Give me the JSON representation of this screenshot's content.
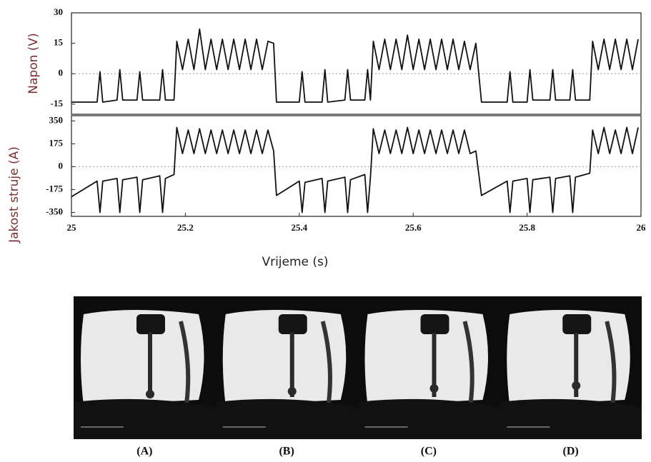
{
  "chart_data": [
    {
      "type": "line",
      "ylabel": "Napon (V)",
      "color": "#111111",
      "xlim": [
        25,
        26
      ],
      "ylim": [
        -20,
        30
      ],
      "yticks": [
        -15,
        0,
        15,
        30
      ],
      "x": [
        25.0,
        25.045,
        25.05,
        25.055,
        25.08,
        25.085,
        25.09,
        25.115,
        25.12,
        25.125,
        25.155,
        25.16,
        25.165,
        25.18,
        25.185,
        25.195,
        25.205,
        25.215,
        25.225,
        25.235,
        25.245,
        25.255,
        25.265,
        25.275,
        25.285,
        25.295,
        25.305,
        25.315,
        25.325,
        25.335,
        25.345,
        25.355,
        25.36,
        25.4,
        25.405,
        25.41,
        25.44,
        25.445,
        25.45,
        25.48,
        25.485,
        25.49,
        25.515,
        25.52,
        25.525,
        25.53,
        25.54,
        25.55,
        25.56,
        25.57,
        25.58,
        25.59,
        25.6,
        25.61,
        25.62,
        25.63,
        25.64,
        25.65,
        25.66,
        25.67,
        25.68,
        25.69,
        25.7,
        25.71,
        25.72,
        25.765,
        25.77,
        25.775,
        25.8,
        25.805,
        25.81,
        25.84,
        25.845,
        25.85,
        25.875,
        25.88,
        25.885,
        25.91,
        25.915,
        25.925,
        25.935,
        25.945,
        25.955,
        25.965,
        25.975,
        25.985,
        25.995
      ],
      "values": [
        -14,
        -14,
        1,
        -14,
        -13,
        2,
        -13,
        -13,
        1,
        -13,
        -13,
        2,
        -13,
        -13,
        16,
        2,
        17,
        2,
        22,
        2,
        17,
        2,
        17,
        2,
        17,
        2,
        17,
        2,
        17,
        2,
        16,
        15,
        -14,
        -14,
        1,
        -14,
        -14,
        2,
        -14,
        -13,
        2,
        -13,
        -13,
        2,
        -13,
        16,
        2,
        17,
        2,
        17,
        2,
        19,
        2,
        17,
        2,
        17,
        2,
        17,
        2,
        17,
        2,
        16,
        2,
        15,
        -14,
        -14,
        1,
        -14,
        -14,
        2,
        -13,
        -13,
        2,
        -13,
        -13,
        2,
        -13,
        -13,
        16,
        2,
        17,
        2,
        17,
        2,
        17,
        2,
        17
      ]
    },
    {
      "type": "line",
      "ylabel": "Jakost struje (A)",
      "xlabel": "Vrijeme (s)",
      "color": "#111111",
      "xlim": [
        25,
        26
      ],
      "ylim": [
        -380,
        390
      ],
      "yticks": [
        -350,
        -175,
        0,
        175,
        350
      ],
      "xticks": [
        25,
        25.2,
        25.4,
        25.6,
        25.8,
        26
      ],
      "x": [
        25.0,
        25.045,
        25.05,
        25.055,
        25.08,
        25.085,
        25.09,
        25.115,
        25.12,
        25.125,
        25.155,
        25.16,
        25.165,
        25.18,
        25.185,
        25.195,
        25.205,
        25.215,
        25.225,
        25.235,
        25.245,
        25.255,
        25.265,
        25.275,
        25.285,
        25.295,
        25.305,
        25.315,
        25.325,
        25.335,
        25.345,
        25.355,
        25.36,
        25.4,
        25.405,
        25.41,
        25.44,
        25.445,
        25.45,
        25.48,
        25.485,
        25.49,
        25.515,
        25.52,
        25.525,
        25.53,
        25.54,
        25.55,
        25.56,
        25.57,
        25.58,
        25.59,
        25.6,
        25.61,
        25.62,
        25.63,
        25.64,
        25.65,
        25.66,
        25.67,
        25.68,
        25.69,
        25.7,
        25.71,
        25.72,
        25.765,
        25.77,
        25.775,
        25.8,
        25.805,
        25.81,
        25.84,
        25.845,
        25.85,
        25.875,
        25.88,
        25.885,
        25.91,
        25.915,
        25.925,
        25.935,
        25.945,
        25.955,
        25.965,
        25.975,
        25.985,
        25.995
      ],
      "values": [
        -230,
        -110,
        -350,
        -110,
        -90,
        -350,
        -100,
        -80,
        -350,
        -100,
        -70,
        -350,
        -90,
        -60,
        300,
        100,
        280,
        100,
        290,
        100,
        280,
        100,
        280,
        100,
        280,
        100,
        280,
        100,
        280,
        100,
        280,
        120,
        -220,
        -110,
        -350,
        -120,
        -90,
        -350,
        -110,
        -80,
        -350,
        -100,
        -60,
        -350,
        -80,
        290,
        100,
        280,
        100,
        280,
        100,
        300,
        100,
        280,
        100,
        280,
        100,
        280,
        100,
        280,
        100,
        280,
        100,
        120,
        -220,
        -110,
        -350,
        -110,
        -90,
        -350,
        -100,
        -80,
        -350,
        -90,
        -70,
        -350,
        -80,
        -50,
        280,
        100,
        300,
        100,
        280,
        100,
        300,
        100,
        300
      ]
    }
  ],
  "photos": {
    "captions": [
      "(A)",
      "(B)",
      "(C)",
      "(D)"
    ]
  }
}
